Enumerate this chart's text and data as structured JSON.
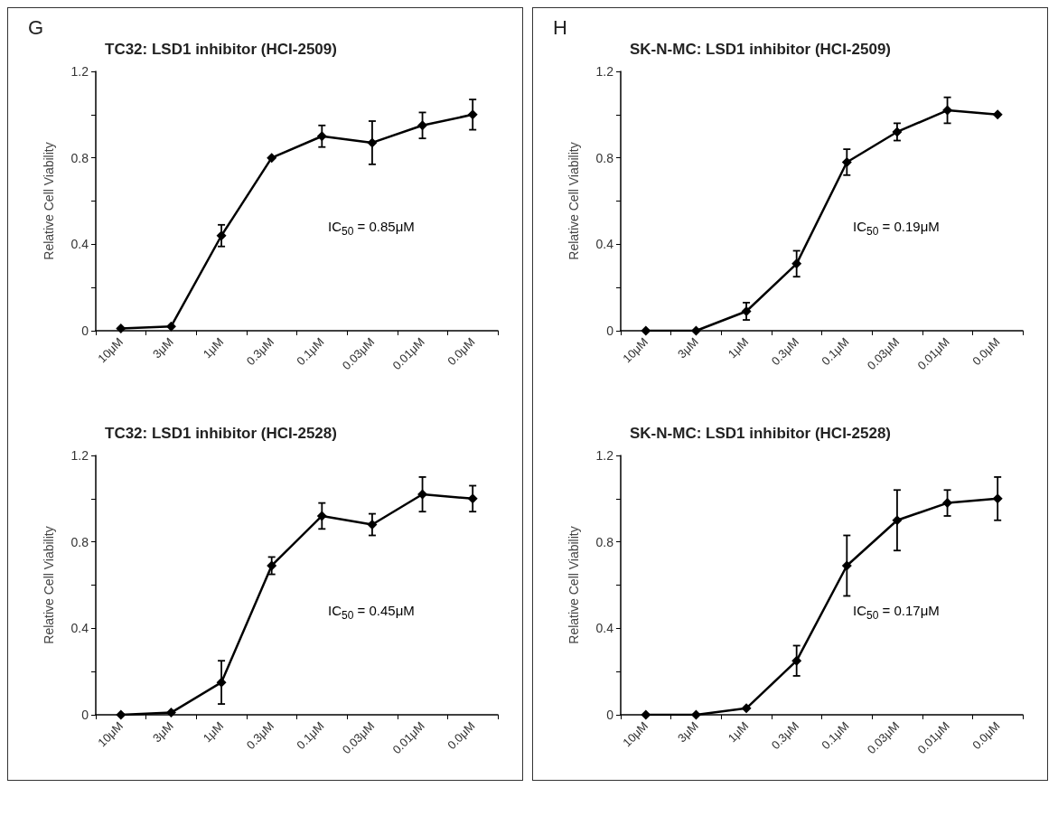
{
  "chart_data": [
    {
      "type": "line",
      "title": "TC32: LSD1 inhibitor (HCI-2509)",
      "ylabel": "Relative Cell Viability",
      "categories": [
        "10μM",
        "3μM",
        "1μM",
        "0.3μM",
        "0.1μM",
        "0.03μM",
        "0.01μM",
        "0.0μM"
      ],
      "series": [
        {
          "color": "#000000",
          "values": [
            0.01,
            0.02,
            0.44,
            0.8,
            0.9,
            0.87,
            0.95,
            1.0
          ],
          "errors": [
            null,
            null,
            0.05,
            null,
            0.05,
            0.1,
            0.06,
            0.07
          ]
        }
      ],
      "ylim": [
        0,
        1.2
      ],
      "yticks": [
        0,
        {
          "value": 0.2,
          "label": null
        },
        0.4,
        {
          "value": 0.6,
          "label": null
        },
        0.8,
        {
          "value": 1.0,
          "label": null
        },
        1.2
      ],
      "grid": false,
      "marker": "diamond",
      "line_style": "solid",
      "annotations": [
        "G",
        "IC$_{50}$ = 0.85μM"
      ]
    },
    {
      "type": "line",
      "title": "SK-N-MC: LSD1 inhibitor (HCI-2509)",
      "ylabel": "Relative Cell Viability",
      "categories": [
        "10μM",
        "3μM",
        "1μM",
        "0.3μM",
        "0.1μM",
        "0.03μM",
        "0.01μM",
        "0.0μM"
      ],
      "series": [
        {
          "color": "#000000",
          "values": [
            0,
            0,
            0.09,
            0.31,
            0.78,
            0.92,
            1.02,
            1.0
          ],
          "errors": [
            null,
            null,
            0.04,
            0.06,
            0.06,
            0.04,
            0.06,
            null
          ]
        }
      ],
      "ylim": [
        0,
        1.2
      ],
      "yticks": [
        0,
        {
          "value": 0.2,
          "label": null
        },
        0.4,
        {
          "value": 0.6,
          "label": null
        },
        0.8,
        {
          "value": 1.0,
          "label": null
        },
        1.2
      ],
      "grid": false,
      "marker": "diamond",
      "line_style": "solid",
      "annotations": [
        "H",
        "IC$_{50}$ = 0.19μM"
      ]
    },
    {
      "type": "line",
      "title": "TC32: LSD1 inhibitor (HCI-2528)",
      "ylabel": "Relative Cell Viability",
      "categories": [
        "10μM",
        "3μM",
        "1μM",
        "0.3μM",
        "0.1μM",
        "0.03μM",
        "0.01μM",
        "0.0μM"
      ],
      "series": [
        {
          "color": "#000000",
          "values": [
            0,
            0.01,
            0.15,
            0.69,
            0.92,
            0.88,
            1.02,
            1.0
          ],
          "errors": [
            null,
            null,
            0.1,
            0.04,
            0.06,
            0.05,
            0.08,
            0.06
          ]
        }
      ],
      "ylim": [
        0,
        1.2
      ],
      "yticks": [
        0,
        {
          "value": 0.2,
          "label": null
        },
        0.4,
        {
          "value": 0.6,
          "label": null
        },
        0.8,
        {
          "value": 1.0,
          "label": null
        },
        1.2
      ],
      "grid": false,
      "marker": "diamond",
      "line_style": "solid",
      "annotations": [
        "IC$_{50}$ = 0.45μM"
      ]
    },
    {
      "type": "line",
      "title": "SK-N-MC: LSD1 inhibitor (HCI-2528)",
      "ylabel": "Relative Cell Viability",
      "categories": [
        "10μM",
        "3μM",
        "1μM",
        "0.3μM",
        "0.1μM",
        "0.03μM",
        "0.01μM",
        "0.0μM"
      ],
      "series": [
        {
          "color": "#000000",
          "values": [
            0,
            0,
            0.03,
            0.25,
            0.69,
            0.9,
            0.98,
            1.0
          ],
          "errors": [
            null,
            null,
            null,
            0.07,
            0.14,
            0.14,
            0.06,
            0.1
          ]
        }
      ],
      "ylim": [
        0,
        1.2
      ],
      "yticks": [
        0,
        {
          "value": 0.2,
          "label": null
        },
        0.4,
        {
          "value": 0.6,
          "label": null
        },
        0.8,
        {
          "value": 1.0,
          "label": null
        },
        1.2
      ],
      "grid": false,
      "marker": "diamond",
      "line_style": "solid",
      "annotations": [
        "IC$_{50}$ = 0.17μM"
      ]
    }
  ]
}
